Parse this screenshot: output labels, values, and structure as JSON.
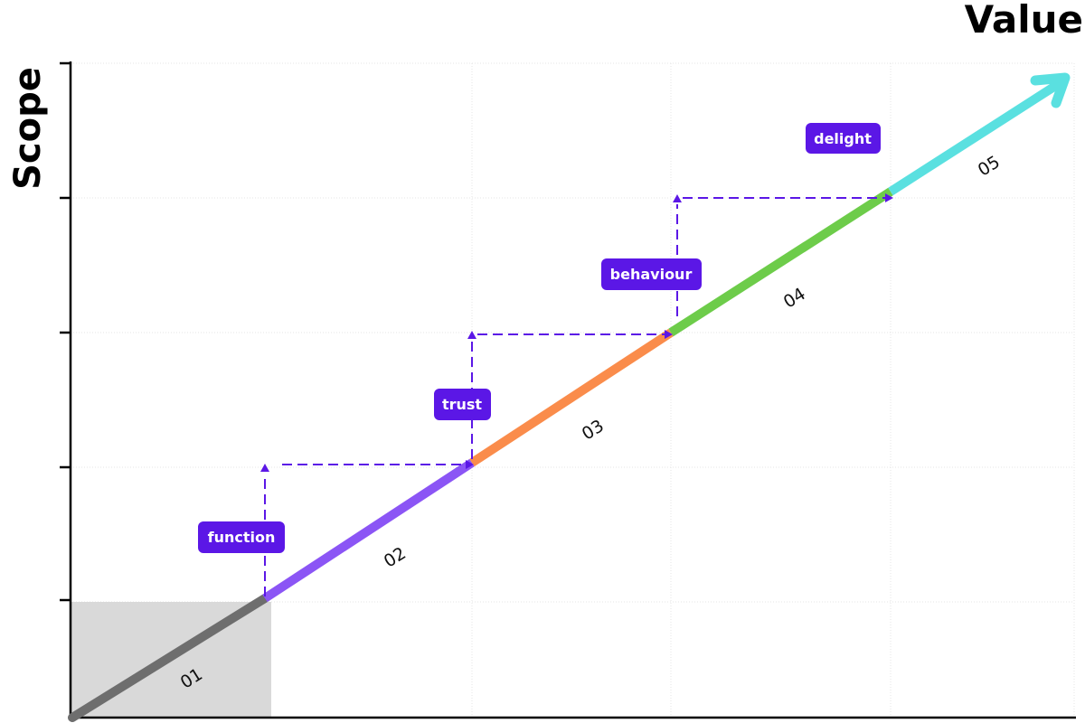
{
  "axes": {
    "x_title": "Value",
    "y_title": "Scope",
    "y_tick_count": 5
  },
  "segments": [
    {
      "number": "01",
      "color": "#6e6e6e"
    },
    {
      "number": "02",
      "color": "#8b55f5"
    },
    {
      "number": "03",
      "color": "#fa8c4b"
    },
    {
      "number": "04",
      "color": "#6dcc4a"
    },
    {
      "number": "05",
      "color": "#5ae0e0"
    }
  ],
  "stages": [
    {
      "label": "function"
    },
    {
      "label": "trust"
    },
    {
      "label": "behaviour"
    },
    {
      "label": "delight"
    }
  ],
  "colors": {
    "accent": "#5b17e6",
    "grid": "#e2e2e2",
    "origin_box": "#d9d9d9",
    "axis": "#000000"
  }
}
